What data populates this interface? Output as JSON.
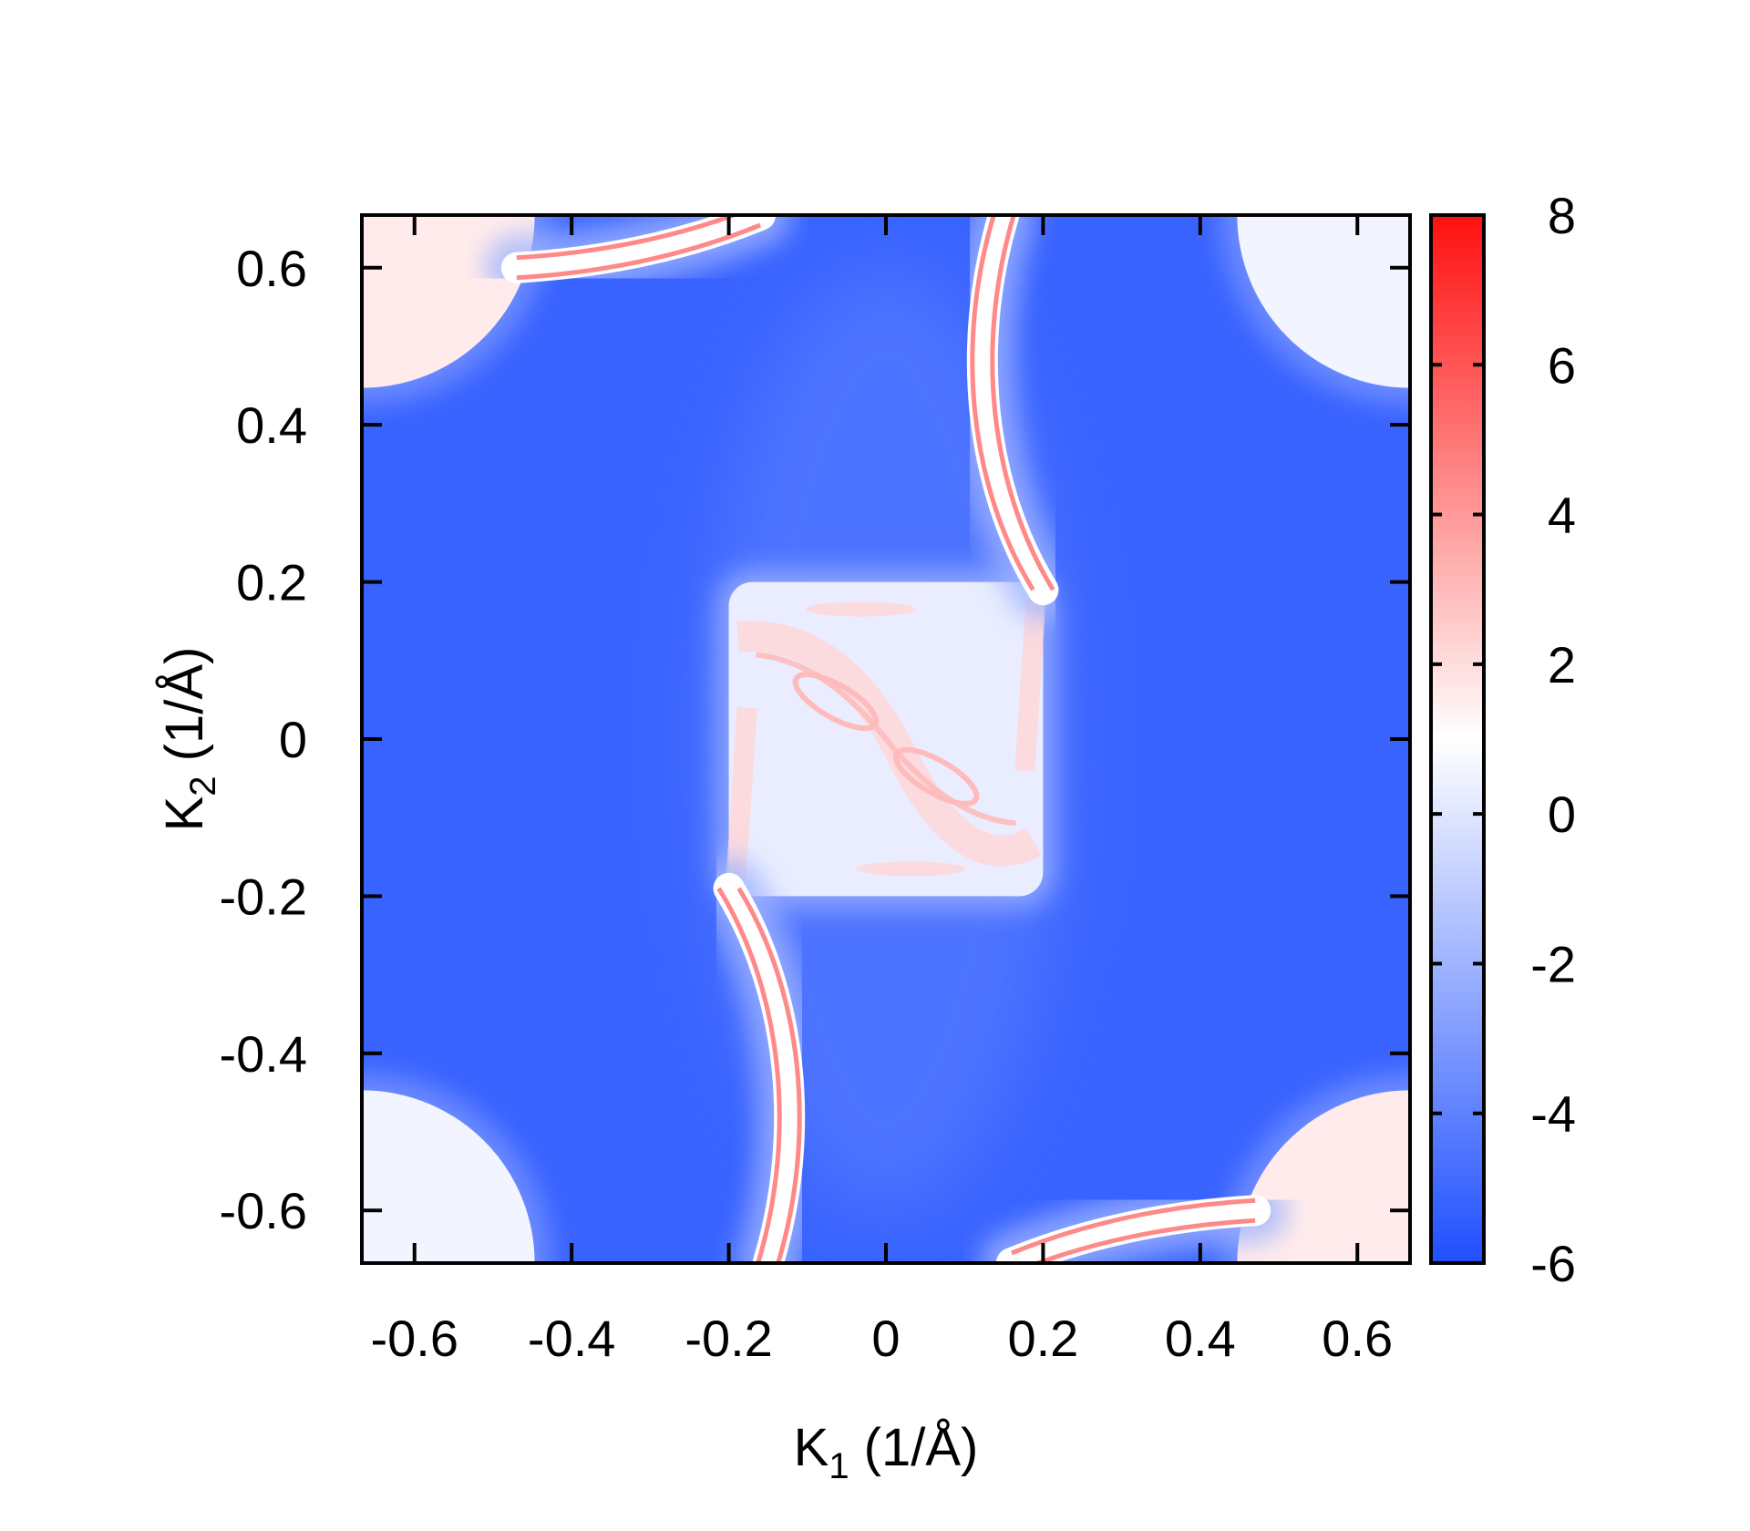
{
  "chart_data": {
    "type": "heatmap",
    "title": "",
    "xlabel": {
      "base": "K",
      "sub": "1",
      "unit": " (1/Å)"
    },
    "ylabel": {
      "base": "K",
      "sub": "2",
      "unit": " (1/Å)"
    },
    "xlim": [
      -0.667,
      0.667
    ],
    "ylim": [
      -0.667,
      0.667
    ],
    "x_ticks": [
      -0.6,
      -0.4,
      -0.2,
      0,
      0.2,
      0.4,
      0.6
    ],
    "x_tick_labels": [
      "-0.6",
      "-0.4",
      "-0.2",
      "0",
      "0.2",
      "0.4",
      "0.6"
    ],
    "y_ticks": [
      -0.6,
      -0.4,
      -0.2,
      0,
      0.2,
      0.4,
      0.6
    ],
    "y_tick_labels": [
      "-0.6",
      "-0.4",
      "-0.2",
      "0",
      "0.2",
      "0.4",
      "0.6"
    ],
    "colorbar": {
      "range": [
        -6,
        8
      ],
      "ticks": [
        -6,
        -4,
        -2,
        0,
        2,
        4,
        6,
        8
      ],
      "tick_labels": [
        "-6",
        "-4",
        "-2",
        "0",
        "2",
        "4",
        "6",
        "8"
      ],
      "colors": {
        "low": "#1f4fff",
        "mid": "#ffffff",
        "high": "#ff1010"
      },
      "mid_value": 1
    },
    "background_value": -5.2,
    "features": {
      "central_square": {
        "x": [
          -0.2,
          0.2
        ],
        "y": [
          -0.2,
          0.2
        ],
        "value": 0.3
      },
      "corner_pockets": [
        {
          "x": -0.667,
          "y": 0.667,
          "radius": 0.22,
          "value": 1.6
        },
        {
          "x": 0.667,
          "y": 0.667,
          "radius": 0.22,
          "value": 0.6
        },
        {
          "x": -0.667,
          "y": -0.667,
          "radius": 0.22,
          "value": 0.6
        },
        {
          "x": 0.667,
          "y": -0.667,
          "radius": 0.22,
          "value": 1.6
        }
      ],
      "surface_arcs": [
        {
          "points": [
            [
              0.2,
              0.19
            ],
            [
              0.12,
              0.32
            ],
            [
              0.1,
              0.5
            ],
            [
              0.15,
              0.667
            ]
          ],
          "value": 4.5
        },
        {
          "points": [
            [
              -0.2,
              -0.19
            ],
            [
              -0.12,
              -0.32
            ],
            [
              -0.1,
              -0.5
            ],
            [
              -0.15,
              -0.667
            ]
          ],
          "value": 4.5
        },
        {
          "points": [
            [
              -0.47,
              0.6
            ],
            [
              -0.3,
              0.61
            ],
            [
              -0.16,
              0.667
            ]
          ],
          "value": 4.5
        },
        {
          "points": [
            [
              0.47,
              -0.6
            ],
            [
              0.3,
              -0.61
            ],
            [
              0.16,
              -0.667
            ]
          ],
          "value": 4.5
        }
      ]
    }
  }
}
